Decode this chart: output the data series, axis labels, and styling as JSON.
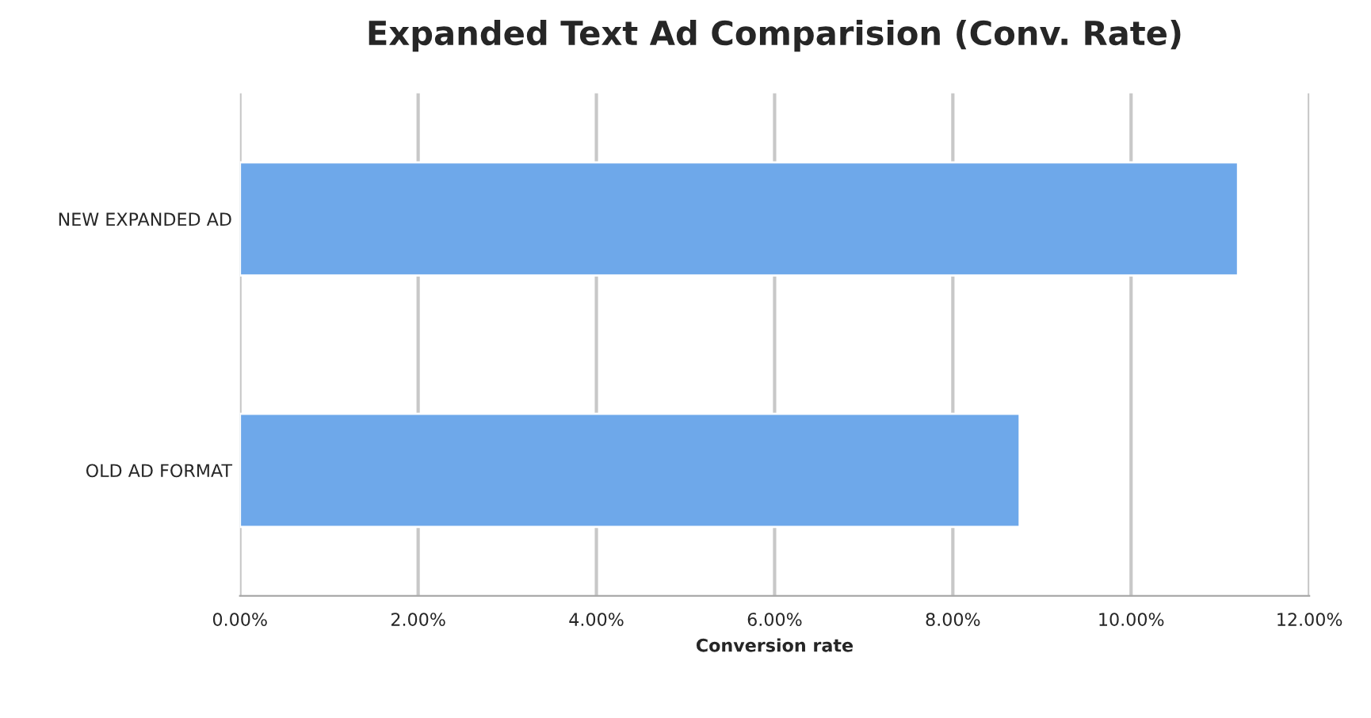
{
  "chart_data": {
    "type": "bar",
    "orientation": "horizontal",
    "title": "Expanded Text Ad Comparision (Conv. Rate)",
    "xlabel": "Conversion rate",
    "categories": [
      "NEW EXPANDED AD",
      "OLD AD FORMAT"
    ],
    "values": [
      11.2,
      8.75
    ],
    "color": "#6ea8ea",
    "xlim": [
      0,
      12
    ],
    "xticks": [
      {
        "value": 0,
        "label": "0.00%"
      },
      {
        "value": 2,
        "label": "2.00%"
      },
      {
        "value": 4,
        "label": "4.00%"
      },
      {
        "value": 6,
        "label": "6.00%"
      },
      {
        "value": 8,
        "label": "8.00%"
      },
      {
        "value": 10,
        "label": "10.00%"
      },
      {
        "value": 12,
        "label": "12.00%"
      }
    ],
    "grid": "x"
  }
}
